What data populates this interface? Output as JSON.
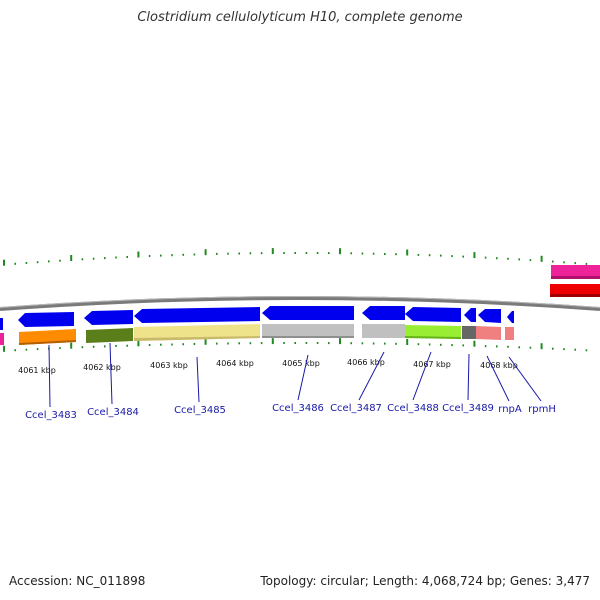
{
  "title": "Clostridium cellulolyticum H10, complete genome",
  "footer": {
    "accession": "Accession: NC_011898",
    "info": "Topology: circular; Length: 4,068,724 bp; Genes: 3,477"
  },
  "colors": {
    "cds_arrow": "#0000ee",
    "backbone": "#7a7a7a",
    "tick": "#228822",
    "label": "#1a1aa8"
  },
  "kbp_ticks": [
    "4061 kbp",
    "4062 kbp",
    "4063 kbp",
    "4064 kbp",
    "4065 kbp",
    "4066 kbp",
    "4067 kbp",
    "4068 kbp"
  ],
  "genes": [
    "Ccel_3483",
    "Ccel_3484",
    "Ccel_3485",
    "Ccel_3486",
    "Ccel_3487",
    "Ccel_3488",
    "Ccel_3489",
    "rnpA",
    "rpmH"
  ]
}
